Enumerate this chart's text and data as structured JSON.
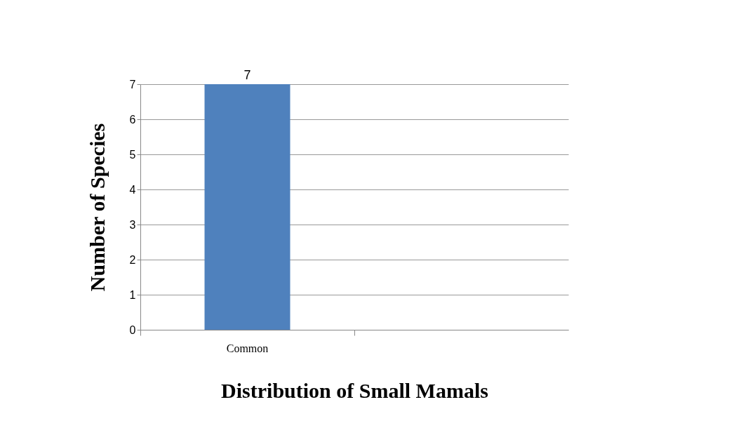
{
  "chart_data": {
    "type": "bar",
    "xlabel": "Distribution of Small Mamals",
    "ylabel": "Number of  Species",
    "categories": [
      "Common",
      null
    ],
    "values": [
      7,
      null
    ],
    "color": "#4f81bd",
    "ylim": [
      0,
      7
    ],
    "yticks": [
      0,
      1,
      2,
      3,
      4,
      5,
      6,
      7
    ],
    "grid": "y",
    "data_labels": true
  }
}
